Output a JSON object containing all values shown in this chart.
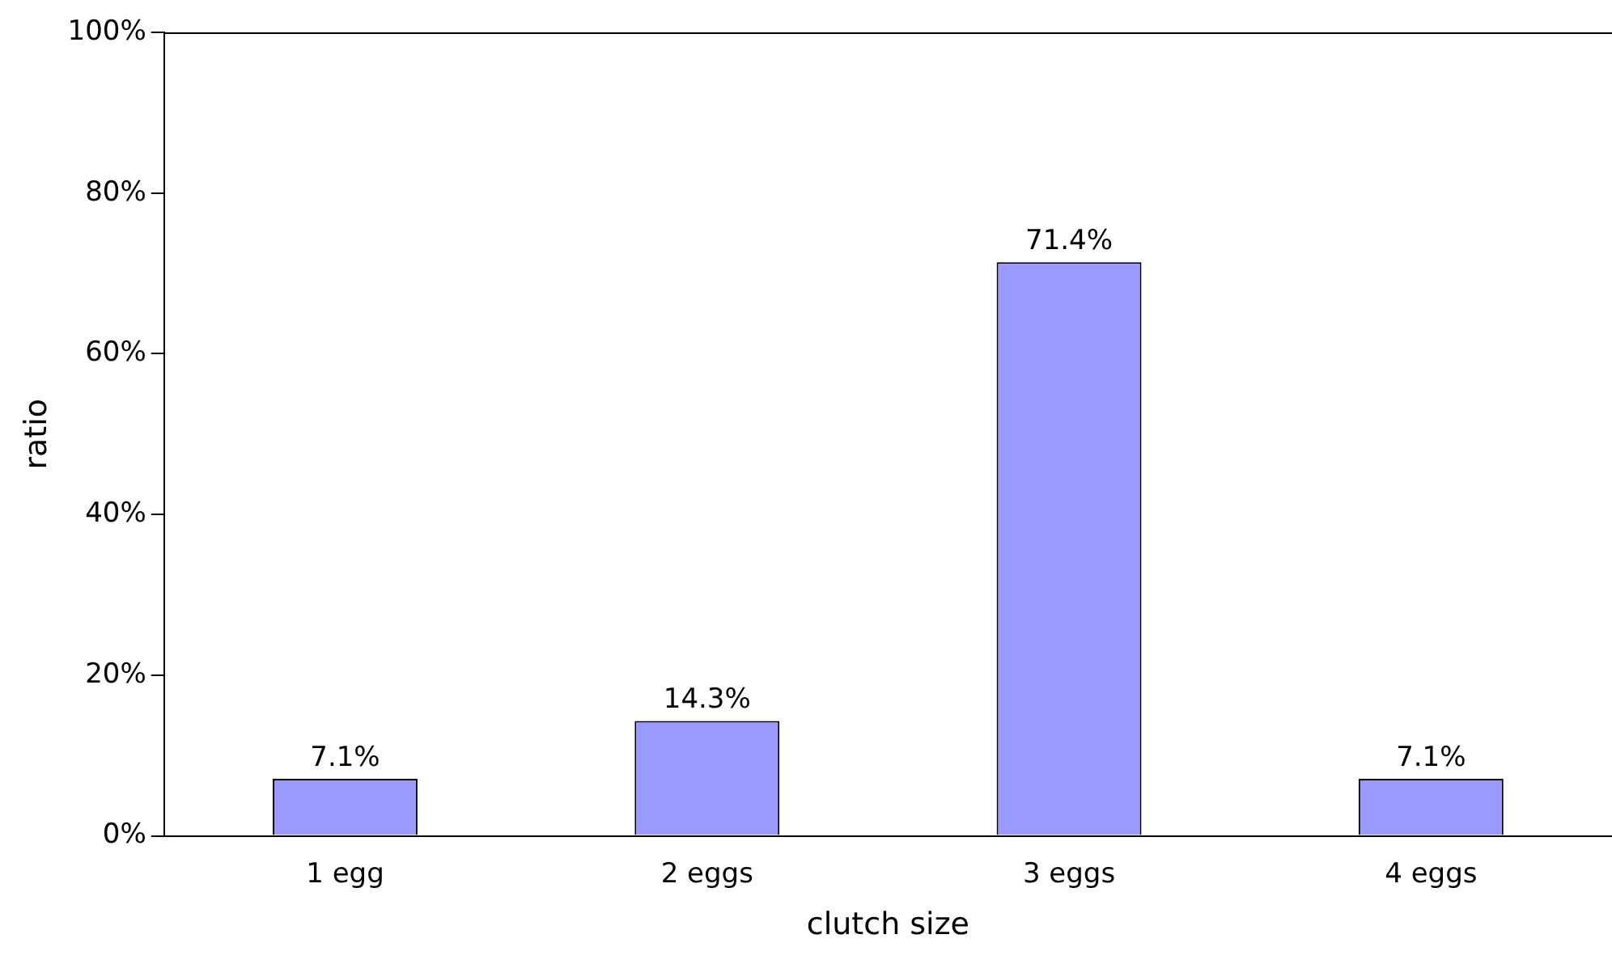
{
  "chart_data": {
    "type": "bar",
    "xlabel": "clutch size",
    "ylabel": "ratio",
    "categories": [
      "1 egg",
      "2 eggs",
      "3 eggs",
      "4 eggs"
    ],
    "values": [
      7.1,
      14.3,
      71.4,
      7.1
    ],
    "value_labels": [
      "7.1%",
      "14.3%",
      "71.4%",
      "7.1%"
    ],
    "color": "#9999ff",
    "ylim": [
      0,
      100
    ],
    "yticks": [
      {
        "value": 0,
        "label": "0%"
      },
      {
        "value": 20,
        "label": "20%"
      },
      {
        "value": 40,
        "label": "40%"
      },
      {
        "value": 60,
        "label": "60%"
      },
      {
        "value": 80,
        "label": "80%"
      },
      {
        "value": 100,
        "label": "100%"
      }
    ],
    "grid": false,
    "legend": false
  }
}
